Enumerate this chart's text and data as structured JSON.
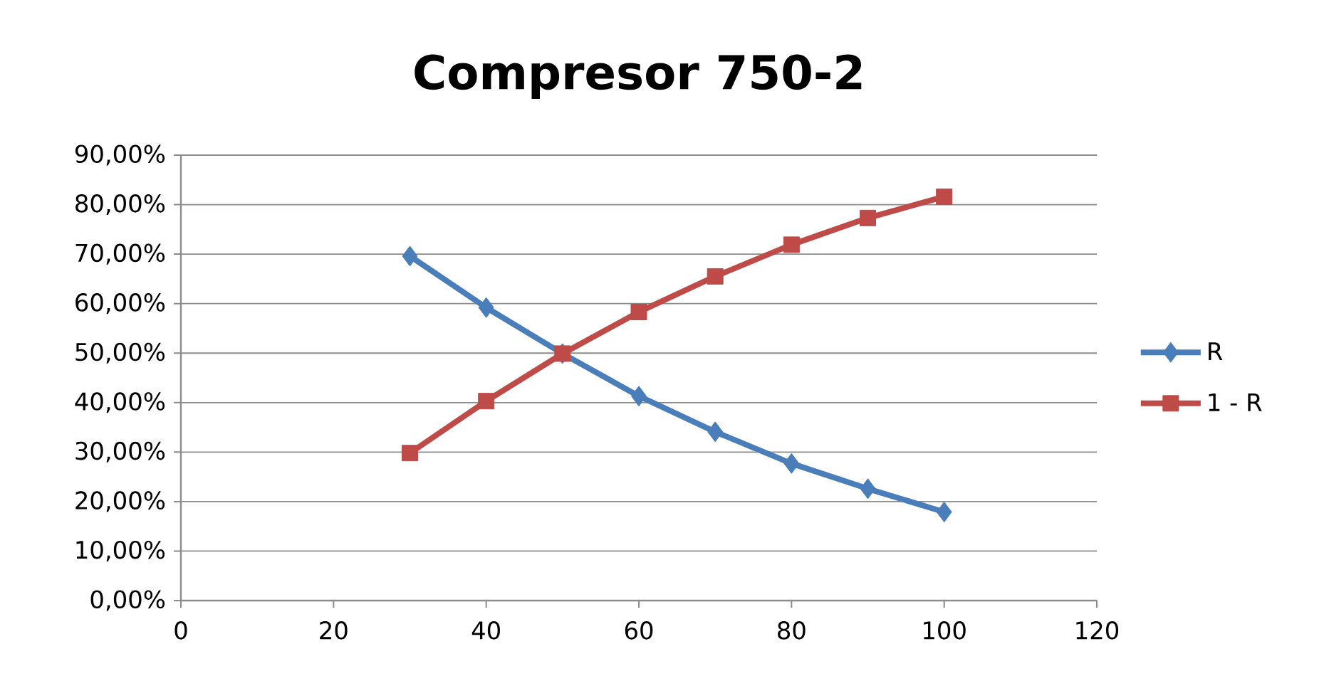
{
  "chart_data": {
    "type": "line",
    "title": "Compresor 750-2",
    "x": [
      30,
      40,
      50,
      60,
      70,
      80,
      90,
      100
    ],
    "series": [
      {
        "name": "R",
        "color": "#4a7ebb",
        "marker": "diamond",
        "values": [
          69.6,
          59.2,
          49.9,
          41.3,
          34.1,
          27.7,
          22.6,
          17.9
        ]
      },
      {
        "name": "1 - R",
        "color": "#be4b48",
        "marker": "square",
        "values": [
          29.8,
          40.3,
          49.9,
          58.3,
          65.5,
          71.9,
          77.3,
          81.6
        ]
      }
    ],
    "xlim": [
      0,
      120
    ],
    "xticks": [
      0,
      20,
      40,
      60,
      80,
      100,
      120
    ],
    "ylim": [
      0,
      90
    ],
    "yticks": [
      {
        "value": 0,
        "label": "0,00%"
      },
      {
        "value": 10,
        "label": "10,00%"
      },
      {
        "value": 20,
        "label": "20,00%"
      },
      {
        "value": 30,
        "label": "30,00%"
      },
      {
        "value": 40,
        "label": "40,00%"
      },
      {
        "value": 50,
        "label": "50,00%"
      },
      {
        "value": 60,
        "label": "60,00%"
      },
      {
        "value": 70,
        "label": "70,00%"
      },
      {
        "value": 80,
        "label": "80,00%"
      },
      {
        "value": 90,
        "label": "90,00%"
      }
    ],
    "grid": "y",
    "legend": "right",
    "line_style": "solid"
  }
}
